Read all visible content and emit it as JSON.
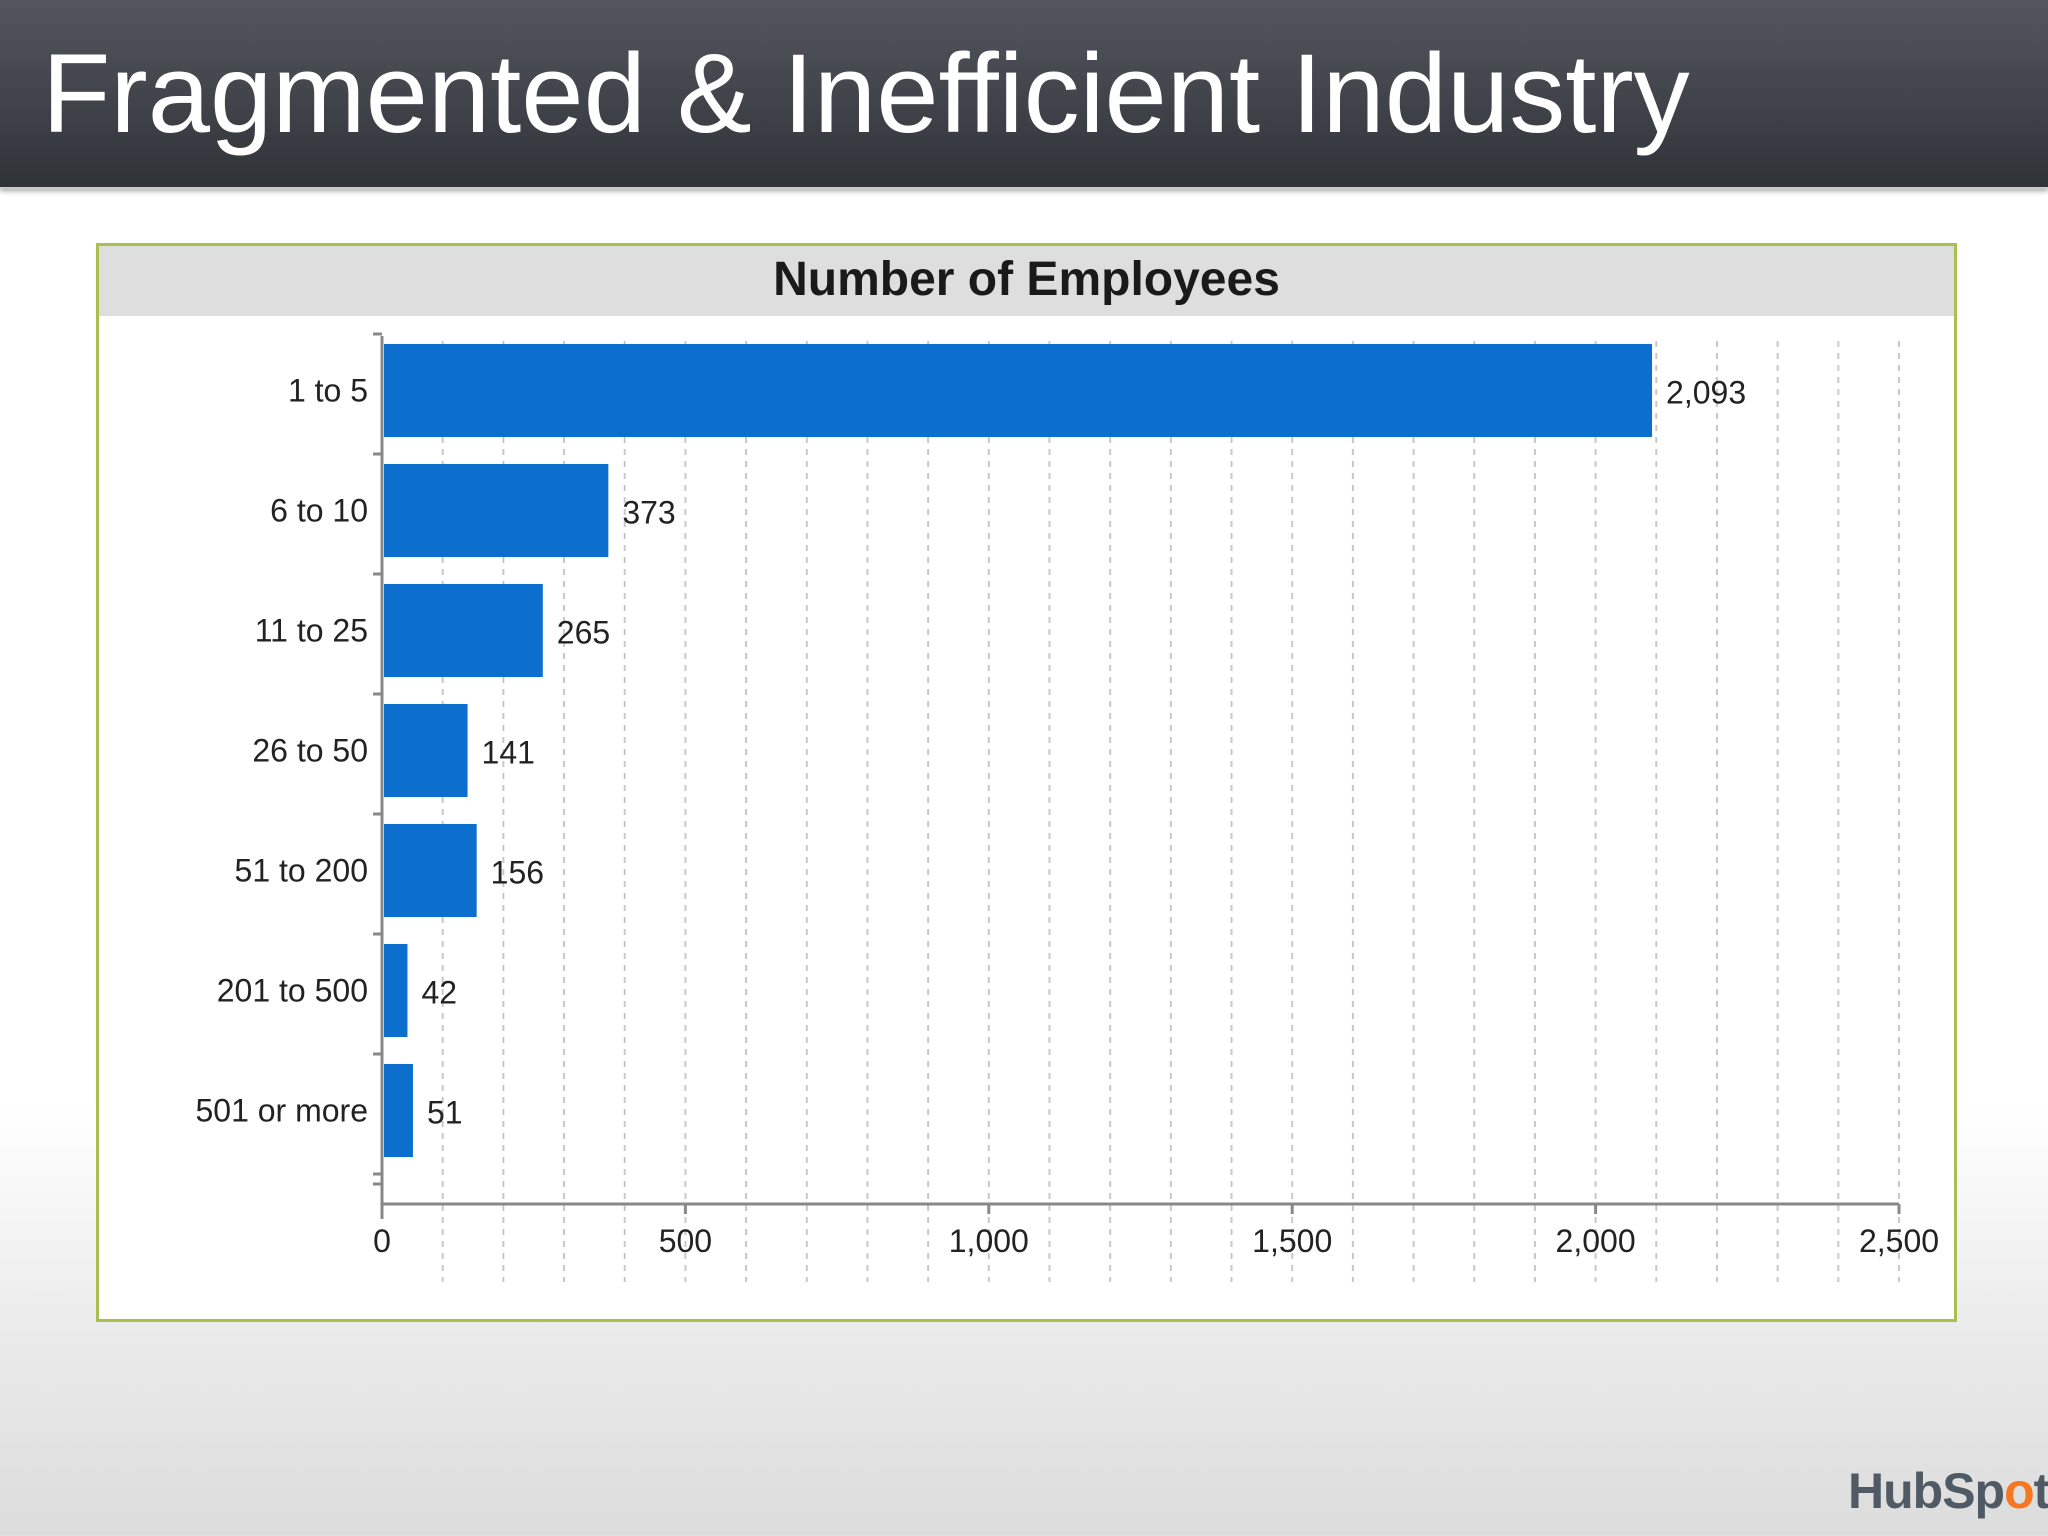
{
  "slide": {
    "title": "Fragmented & Inefficient Industry"
  },
  "logo": {
    "text_pre": "HubSp",
    "text_mid": "o",
    "text_post": "t",
    "accent_color": "#f57722"
  },
  "colors": {
    "bar": "#0c6fcd",
    "frame_border": "#a8c050",
    "title_bar": "#40444a"
  },
  "chart_data": {
    "type": "bar",
    "orientation": "horizontal",
    "title": "Number of Employees",
    "categories": [
      "1 to 5",
      "6 to 10",
      "11 to 25",
      "26 to 50",
      "51 to 200",
      "201 to 500",
      "501 or more"
    ],
    "values": [
      2093,
      373,
      265,
      141,
      156,
      42,
      51
    ],
    "value_labels": [
      "2,093",
      "373",
      "265",
      "141",
      "156",
      "42",
      "51"
    ],
    "xlim": [
      0,
      2500
    ],
    "x_ticks": [
      0,
      500,
      1000,
      1500,
      2000,
      2500
    ],
    "x_tick_labels": [
      "0",
      "500",
      "1,000",
      "1,500",
      "2,000",
      "2,500"
    ],
    "grid": true,
    "grid_style": "dashed vertical",
    "legend": "none"
  }
}
